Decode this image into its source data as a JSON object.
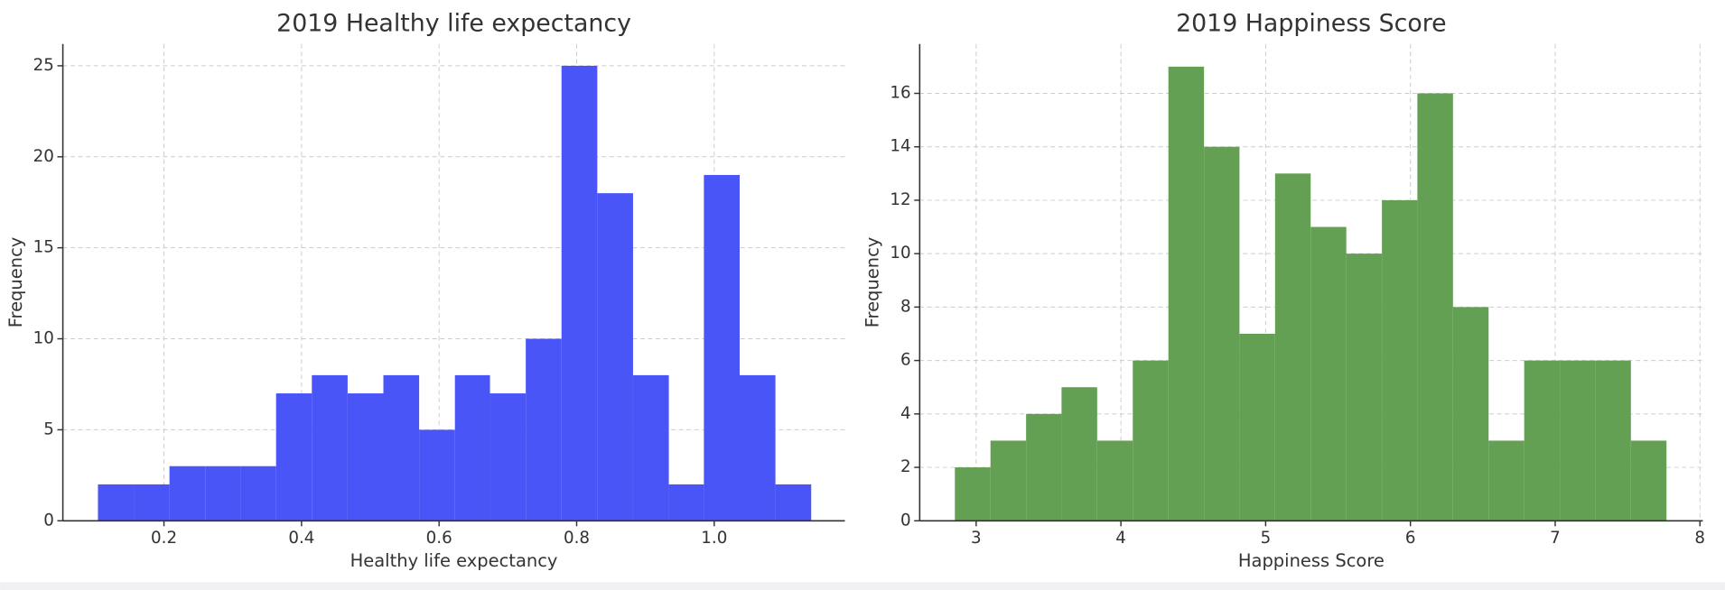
{
  "chart_data": [
    {
      "type": "histogram",
      "title": "2019 Healthy life expectancy",
      "x_label": "Healthy life expectancy",
      "y_label": "Frequency",
      "color": "#4a55f7",
      "grid": true,
      "bins": [
        0.104,
        0.156,
        0.208,
        0.26,
        0.311,
        0.363,
        0.415,
        0.467,
        0.519,
        0.571,
        0.623,
        0.674,
        0.726,
        0.778,
        0.83,
        0.882,
        0.934,
        0.985,
        1.037,
        1.089,
        1.141
      ],
      "values": [
        2,
        2,
        3,
        3,
        3,
        7,
        8,
        7,
        8,
        5,
        8,
        7,
        10,
        25,
        18,
        8,
        2,
        19,
        8,
        2
      ],
      "xlim": [
        0.053,
        1.19
      ],
      "xticks": [
        0.2,
        0.4,
        0.6,
        0.8,
        {
          "value": 1,
          "label": "1.0"
        }
      ],
      "ylim": [
        0,
        26.2
      ],
      "yticks": [
        0,
        5,
        10,
        15,
        20,
        25
      ]
    },
    {
      "type": "histogram",
      "title": "2019 Happiness Score",
      "x_label": "Happiness Score",
      "y_label": "Frequency",
      "color": "#63a053",
      "grid": true,
      "bins": [
        2.853,
        3.099,
        3.345,
        3.59,
        3.836,
        4.082,
        4.328,
        4.574,
        4.819,
        5.065,
        5.311,
        5.557,
        5.803,
        6.048,
        6.294,
        6.54,
        6.786,
        7.032,
        7.277,
        7.523,
        7.769
      ],
      "values": [
        2,
        3,
        4,
        5,
        3,
        6,
        17,
        14,
        7,
        13,
        11,
        10,
        12,
        16,
        8,
        3,
        6,
        6,
        6,
        3
      ],
      "xlim": [
        2.61,
        8.02
      ],
      "xticks": [
        3,
        4,
        5,
        6,
        7,
        8
      ],
      "ylim": [
        0,
        17.85
      ],
      "yticks": [
        0,
        2,
        4,
        6,
        8,
        10,
        12,
        14,
        16
      ]
    }
  ]
}
